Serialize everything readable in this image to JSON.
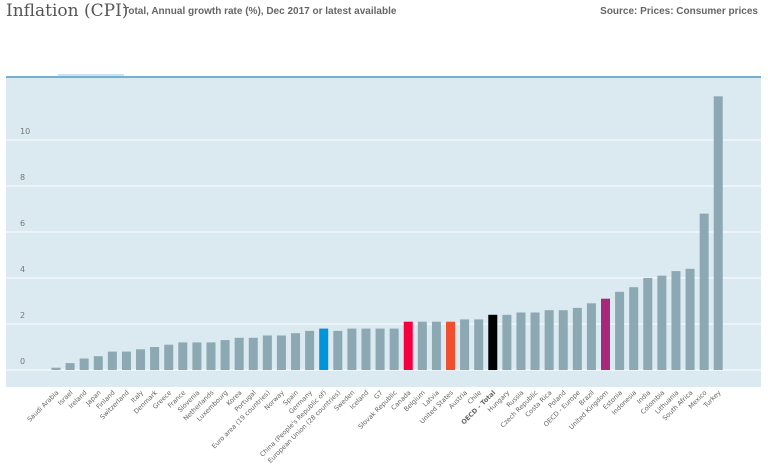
{
  "header": {
    "title": "Inflation (CPI)",
    "subtitle": "Total, Annual growth rate (%), Dec 2017 or latest available",
    "source": "Source: Prices: Consumer prices"
  },
  "colors": {
    "plot_bg": "#dbe9f1",
    "top_rule": "#4a9bc4",
    "default_bar": "#8ca8b2",
    "gridline": "#ffffff"
  },
  "chart_data": {
    "type": "bar",
    "title": "Inflation (CPI)",
    "subtitle": "Total, Annual growth rate (%), Dec 2017 or latest available",
    "xlabel": "",
    "ylabel": "",
    "ylim": [
      -0.7,
      12.7
    ],
    "yticks": [
      0,
      2,
      4,
      6,
      8,
      10
    ],
    "grid": true,
    "categories": [
      "Saudi Arabia",
      "Israel",
      "Ireland",
      "Japan",
      "Finland",
      "Switzerland",
      "Italy",
      "Denmark",
      "Greece",
      "France",
      "Slovenia",
      "Netherlands",
      "Luxembourg",
      "Korea",
      "Portugal",
      "Euro area (19 countries)",
      "Norway",
      "Spain",
      "Germany",
      "China (People's Republic of)",
      "European Union (28 countries)",
      "Sweden",
      "Iceland",
      "G7",
      "Slovak Republic",
      "Canada",
      "Belgium",
      "Latvia",
      "United States",
      "Austria",
      "Chile",
      "OECD - Total",
      "Hungary",
      "Russia",
      "Czech Republic",
      "Costa Rica",
      "Poland",
      "OECD - Europe",
      "Brazil",
      "United Kingdom",
      "Estonia",
      "Indonesia",
      "India",
      "Colombia",
      "Lithuania",
      "South Africa",
      "Mexico",
      "Turkey"
    ],
    "values": [
      0.1,
      0.3,
      0.5,
      0.6,
      0.8,
      0.8,
      0.9,
      1.0,
      1.1,
      1.2,
      1.2,
      1.2,
      1.3,
      1.4,
      1.4,
      1.5,
      1.5,
      1.6,
      1.7,
      1.8,
      1.7,
      1.8,
      1.8,
      1.8,
      1.8,
      2.1,
      2.1,
      2.1,
      2.1,
      2.2,
      2.2,
      2.4,
      2.4,
      2.5,
      2.5,
      2.6,
      2.6,
      2.7,
      2.9,
      3.1,
      3.4,
      3.6,
      4.0,
      4.1,
      4.3,
      4.4,
      6.8,
      11.9
    ],
    "highlights": {
      "China (People's Republic of)": "#0095db",
      "Canada": "#f5003d",
      "United States": "#f04e2e",
      "OECD - Total": "#000000",
      "United Kingdom": "#a6287a"
    },
    "label_colors": {
      "China (People's Republic of)": "#3aa9e0",
      "Canada": "#f5003d",
      "United States": "#f26b4f",
      "OECD - Total": "#111111",
      "United Kingdom": "#b04f98"
    }
  }
}
